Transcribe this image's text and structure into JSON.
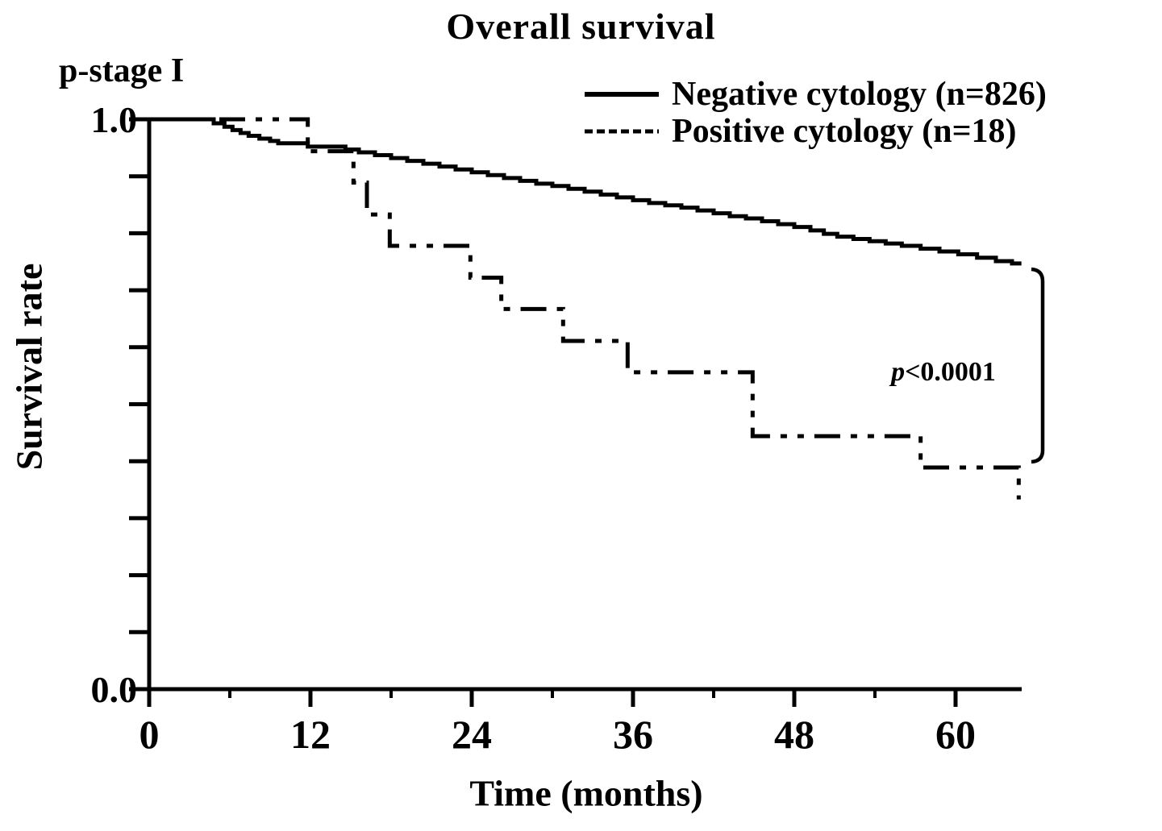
{
  "figure": {
    "title": "Overall survival",
    "stage_label": "p-stage I",
    "background_color": "#ffffff",
    "line_color": "#000000"
  },
  "chart_data": {
    "type": "line",
    "subtype": "kaplan-meier-step",
    "title": "Overall survival",
    "xlabel": "Time (months)",
    "ylabel": "Survival rate",
    "xlim": [
      0,
      65
    ],
    "ylim": [
      0.0,
      1.0
    ],
    "x_major_ticks": [
      0,
      12,
      24,
      36,
      48,
      60
    ],
    "x_minor_ticks": [
      6,
      18,
      30,
      42,
      54
    ],
    "y_minor_tick_step": 0.1,
    "y_tick_labels": [
      {
        "value": 1.0,
        "text": "1.0"
      },
      {
        "value": 0.0,
        "text": "0.0"
      }
    ],
    "grid": false,
    "legend_position": "top-right",
    "annotation": {
      "text_italic": "p",
      "text": "<0.0001"
    },
    "series": [
      {
        "name": "Negative cytology (n=826)",
        "line_style": "solid",
        "start": [
          0,
          1.0
        ],
        "end_time": 64.9,
        "drops": [
          [
            4.8,
            0.993
          ],
          [
            5.6,
            0.987
          ],
          [
            6.2,
            0.981
          ],
          [
            6.8,
            0.976
          ],
          [
            7.4,
            0.971
          ],
          [
            8.2,
            0.966
          ],
          [
            9.0,
            0.962
          ],
          [
            9.6,
            0.958
          ],
          [
            11.8,
            0.952
          ],
          [
            14.6,
            0.947
          ],
          [
            15.6,
            0.942
          ],
          [
            16.8,
            0.937
          ],
          [
            18.0,
            0.932
          ],
          [
            19.2,
            0.927
          ],
          [
            20.4,
            0.922
          ],
          [
            21.6,
            0.917
          ],
          [
            22.8,
            0.912
          ],
          [
            24.0,
            0.907
          ],
          [
            25.2,
            0.902
          ],
          [
            26.4,
            0.897
          ],
          [
            27.6,
            0.892
          ],
          [
            28.8,
            0.887
          ],
          [
            30.0,
            0.883
          ],
          [
            31.2,
            0.878
          ],
          [
            32.4,
            0.873
          ],
          [
            33.6,
            0.868
          ],
          [
            34.8,
            0.863
          ],
          [
            36.0,
            0.858
          ],
          [
            37.2,
            0.853
          ],
          [
            38.4,
            0.849
          ],
          [
            39.6,
            0.845
          ],
          [
            40.8,
            0.84
          ],
          [
            42.0,
            0.835
          ],
          [
            43.2,
            0.83
          ],
          [
            44.4,
            0.826
          ],
          [
            45.6,
            0.821
          ],
          [
            46.8,
            0.816
          ],
          [
            48.0,
            0.811
          ],
          [
            49.2,
            0.805
          ],
          [
            50.2,
            0.799
          ],
          [
            51.2,
            0.794
          ],
          [
            52.4,
            0.79
          ],
          [
            53.6,
            0.786
          ],
          [
            54.8,
            0.782
          ],
          [
            56.0,
            0.778
          ],
          [
            57.4,
            0.773
          ],
          [
            58.8,
            0.768
          ],
          [
            60.2,
            0.763
          ],
          [
            61.6,
            0.757
          ],
          [
            63.0,
            0.751
          ],
          [
            64.2,
            0.747
          ]
        ]
      },
      {
        "name": "Positive cytology (n=18)",
        "line_style": "dash-dot-dot",
        "start": [
          0,
          1.0
        ],
        "end_time": 64.7,
        "drops": [
          [
            11.8,
            0.944
          ],
          [
            15.2,
            0.889
          ],
          [
            16.2,
            0.833
          ],
          [
            17.9,
            0.778
          ],
          [
            23.9,
            0.722
          ],
          [
            26.2,
            0.667
          ],
          [
            30.8,
            0.611
          ],
          [
            35.6,
            0.556
          ],
          [
            44.9,
            0.444
          ],
          [
            57.4,
            0.389
          ],
          [
            64.7,
            0.333
          ]
        ]
      }
    ]
  }
}
